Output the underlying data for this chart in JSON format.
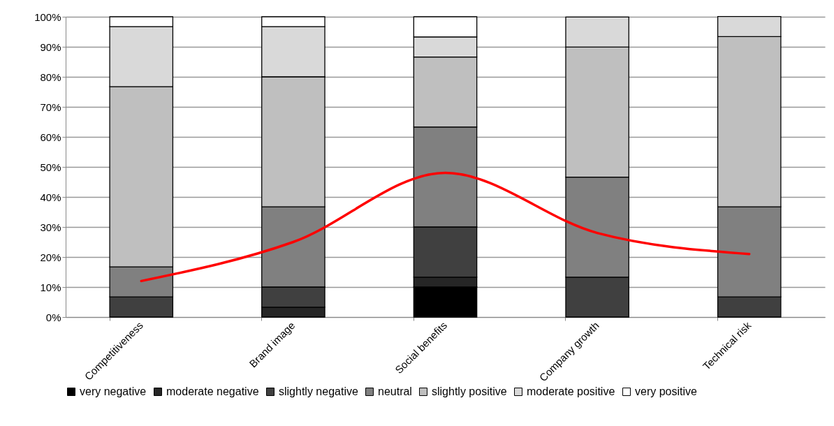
{
  "chart_data": {
    "type": "bar",
    "stacked": true,
    "categories": [
      "Competitiveness",
      "Brand image",
      "Social benefits",
      "Company growth",
      "Technical risk"
    ],
    "series": [
      {
        "name": "very negative",
        "color": "#000000",
        "values": [
          0,
          0,
          10,
          0,
          0
        ]
      },
      {
        "name": "moderate negative",
        "color": "#262626",
        "values": [
          0,
          3.3,
          3.3,
          0,
          0
        ]
      },
      {
        "name": "slightly negative",
        "color": "#404040",
        "values": [
          6.7,
          6.7,
          16.7,
          13.3,
          6.7
        ]
      },
      {
        "name": "neutral",
        "color": "#808080",
        "values": [
          10,
          26.7,
          33.3,
          33.3,
          30
        ]
      },
      {
        "name": "slightly positive",
        "color": "#bfbfbf",
        "values": [
          60,
          43.3,
          23.3,
          43.3,
          56.7
        ]
      },
      {
        "name": "moderate positive",
        "color": "#d9d9d9",
        "values": [
          20,
          16.7,
          6.7,
          10,
          6.7
        ]
      },
      {
        "name": "very positive",
        "color": "#ffffff",
        "values": [
          3.3,
          3.3,
          6.7,
          0,
          0
        ]
      },
      {
        "type": "line",
        "color": "#ff0000",
        "values": [
          12,
          25,
          48,
          28,
          21
        ]
      }
    ],
    "ylim": [
      0,
      100
    ],
    "yticks": [
      {
        "value": 0,
        "label": "0%"
      },
      {
        "value": 10,
        "label": "10%"
      },
      {
        "value": 20,
        "label": "20%"
      },
      {
        "value": 30,
        "label": "30%"
      },
      {
        "value": 40,
        "label": "40%"
      },
      {
        "value": 50,
        "label": "50%"
      },
      {
        "value": 60,
        "label": "60%"
      },
      {
        "value": 70,
        "label": "70%"
      },
      {
        "value": 80,
        "label": "80%"
      },
      {
        "value": 90,
        "label": "90%"
      },
      {
        "value": 100,
        "label": "100%"
      }
    ],
    "grid": "y",
    "legend": "bottom"
  }
}
